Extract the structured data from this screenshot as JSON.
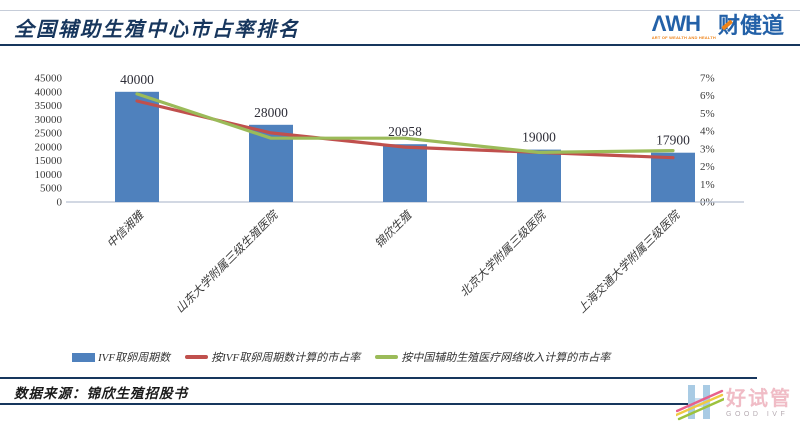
{
  "header": {
    "title": "全国辅助生殖中心市占率排名",
    "logo": {
      "awh": "ΛWH",
      "tagline": "ART OF WEALTH AND HEALTH",
      "brand": "财健道"
    }
  },
  "chart_data": {
    "type": "bar",
    "subtype": "bar-line-combo",
    "categories": [
      "中信湘雅",
      "山东大学附属三级生殖医院",
      "锦欣生殖",
      "北京大学附属三级医院",
      "上海交通大学附属三级医院"
    ],
    "series": [
      {
        "name": "IVF取卵周期数",
        "type": "bar",
        "axis": "left",
        "color": "#4f81bd",
        "values": [
          40000,
          28000,
          20958,
          19000,
          17900
        ]
      },
      {
        "name": "按IVF取卵周期数计算的市占率",
        "type": "line",
        "axis": "right",
        "color": "#c0504d",
        "values_pct": [
          5.7,
          3.9,
          3.1,
          2.8,
          2.5
        ]
      },
      {
        "name": "按中国辅助生殖医疗网络收入计算的市占率",
        "type": "line",
        "axis": "right",
        "color": "#9bbb59",
        "values_pct": [
          6.1,
          3.6,
          3.6,
          2.8,
          2.9
        ]
      }
    ],
    "data_labels": [
      "40000",
      "28000",
      "20958",
      "19000",
      "17900"
    ],
    "left_axis": {
      "min": 0,
      "max": 45000,
      "step": 5000
    },
    "right_axis": {
      "min": 0,
      "max": 7,
      "step": 1,
      "format": "percent"
    },
    "grid": false,
    "legend_position": "bottom",
    "title": "全国辅助生殖中心市占率排名"
  },
  "footer": {
    "source": "数据来源：锦欣生殖招股书",
    "logo": {
      "brand": "好试管",
      "subtitle": "GOOD IVF"
    }
  },
  "colors": {
    "title_navy": "#17365d",
    "bar_blue": "#4f81bd",
    "line_red": "#c0504d",
    "line_green": "#9bbb59",
    "awh_blue": "#2361a8",
    "awh_orange": "#ef8318",
    "goodivf_pink": "#f0bcc6",
    "goodivf_lightblue": "#a9cbe4"
  }
}
